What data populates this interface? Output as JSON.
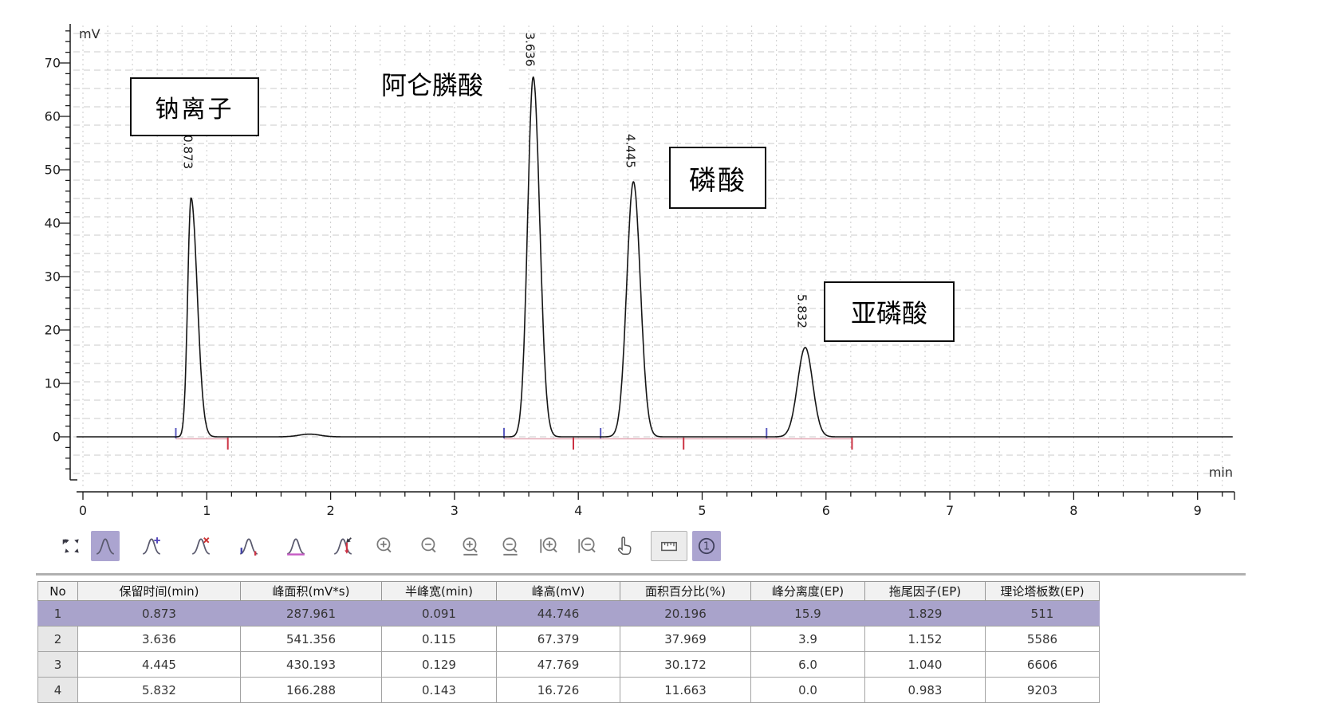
{
  "colors": {
    "accent_purple": "#aba4d0",
    "row_highlight": "#a9a3cb",
    "marker_blue": "#5b5bc0",
    "marker_red": "#cc3344",
    "baseline_pink": "#e4a9b6",
    "grid_gray": "#cbcbcb",
    "curve_black": "#161616"
  },
  "chart_data": {
    "type": "line",
    "title": "",
    "xlabel": "min",
    "ylabel": "mV",
    "xlim": [
      0,
      9.3
    ],
    "ylim": [
      -7.5,
      77
    ],
    "x_ticks": [
      0,
      1,
      2,
      3,
      4,
      5,
      6,
      7,
      8,
      9
    ],
    "y_ticks": [
      0,
      10,
      20,
      30,
      40,
      50,
      60,
      70
    ],
    "grid": true,
    "peaks": [
      {
        "no": 1,
        "rt": 0.873,
        "height_mv": 44.746,
        "half_width_min": 0.091,
        "area": 287.961,
        "area_pct": 20.196,
        "tailing": 1.829,
        "label": "0.873",
        "annotation": "钠离子"
      },
      {
        "no": 2,
        "rt": 3.636,
        "height_mv": 67.379,
        "half_width_min": 0.115,
        "area": 541.356,
        "area_pct": 37.969,
        "tailing": 1.152,
        "label": "3.636",
        "annotation": "阿仑膦酸"
      },
      {
        "no": 3,
        "rt": 4.445,
        "height_mv": 47.769,
        "half_width_min": 0.129,
        "area": 430.193,
        "area_pct": 30.172,
        "tailing": 1.04,
        "label": "4.445",
        "annotation": "磷酸"
      },
      {
        "no": 4,
        "rt": 5.832,
        "height_mv": 16.726,
        "half_width_min": 0.143,
        "area": 166.288,
        "area_pct": 11.663,
        "tailing": 0.983,
        "label": "5.832",
        "annotation": "亚磷酸"
      }
    ],
    "minor_features": [
      {
        "rt": 1.83,
        "height_mv": 0.5,
        "half_width_min": 0.2,
        "tailing": 1.0
      }
    ],
    "peak_markers": {
      "starts": [
        0.75,
        3.4,
        4.18,
        5.52
      ],
      "ends": [
        1.17,
        3.96,
        4.85,
        6.21
      ]
    },
    "baseline_segments": [
      [
        0.75,
        1.17
      ],
      [
        3.4,
        6.21
      ]
    ],
    "annotations": [
      {
        "text": "钠离子",
        "boxed": true
      },
      {
        "text": "阿仑膦酸",
        "boxed": false
      },
      {
        "text": "磷酸",
        "boxed": true
      },
      {
        "text": "亚磷酸",
        "boxed": true
      }
    ]
  },
  "toolbar": {
    "icons": [
      {
        "name": "fit-view",
        "selected": false
      },
      {
        "name": "peak-pick",
        "selected": true
      },
      {
        "name": "peak-add",
        "selected": false
      },
      {
        "name": "peak-delete",
        "selected": false
      },
      {
        "name": "peak-start-mark",
        "selected": false
      },
      {
        "name": "peak-baseline",
        "selected": false
      },
      {
        "name": "peak-manual",
        "selected": false
      },
      {
        "name": "zoom-in",
        "selected": false
      },
      {
        "name": "zoom-out",
        "selected": false
      },
      {
        "name": "zoom-in-horizontal",
        "selected": false
      },
      {
        "name": "zoom-out-horizontal",
        "selected": false
      },
      {
        "name": "zoom-in-vertical",
        "selected": false
      },
      {
        "name": "zoom-out-vertical",
        "selected": false
      },
      {
        "name": "hand-tool",
        "selected": false
      },
      {
        "name": "ruler-tool",
        "selected": false,
        "style": "gray"
      },
      {
        "name": "label-one",
        "selected": true
      }
    ]
  },
  "table": {
    "columns": [
      "No",
      "保留时间(min)",
      "峰面积(mV*s)",
      "半峰宽(min)",
      "峰高(mV)",
      "面积百分比(%)",
      "峰分离度(EP)",
      "拖尾因子(EP)",
      "理论塔板数(EP)"
    ],
    "rows": [
      [
        "1",
        "0.873",
        "287.961",
        "0.091",
        "44.746",
        "20.196",
        "15.9",
        "1.829",
        "511"
      ],
      [
        "2",
        "3.636",
        "541.356",
        "0.115",
        "67.379",
        "37.969",
        "3.9",
        "1.152",
        "5586"
      ],
      [
        "3",
        "4.445",
        "430.193",
        "0.129",
        "47.769",
        "30.172",
        "6.0",
        "1.040",
        "6606"
      ],
      [
        "4",
        "5.832",
        "166.288",
        "0.143",
        "16.726",
        "11.663",
        "0.0",
        "0.983",
        "9203"
      ]
    ],
    "selected_row_index": 0
  }
}
